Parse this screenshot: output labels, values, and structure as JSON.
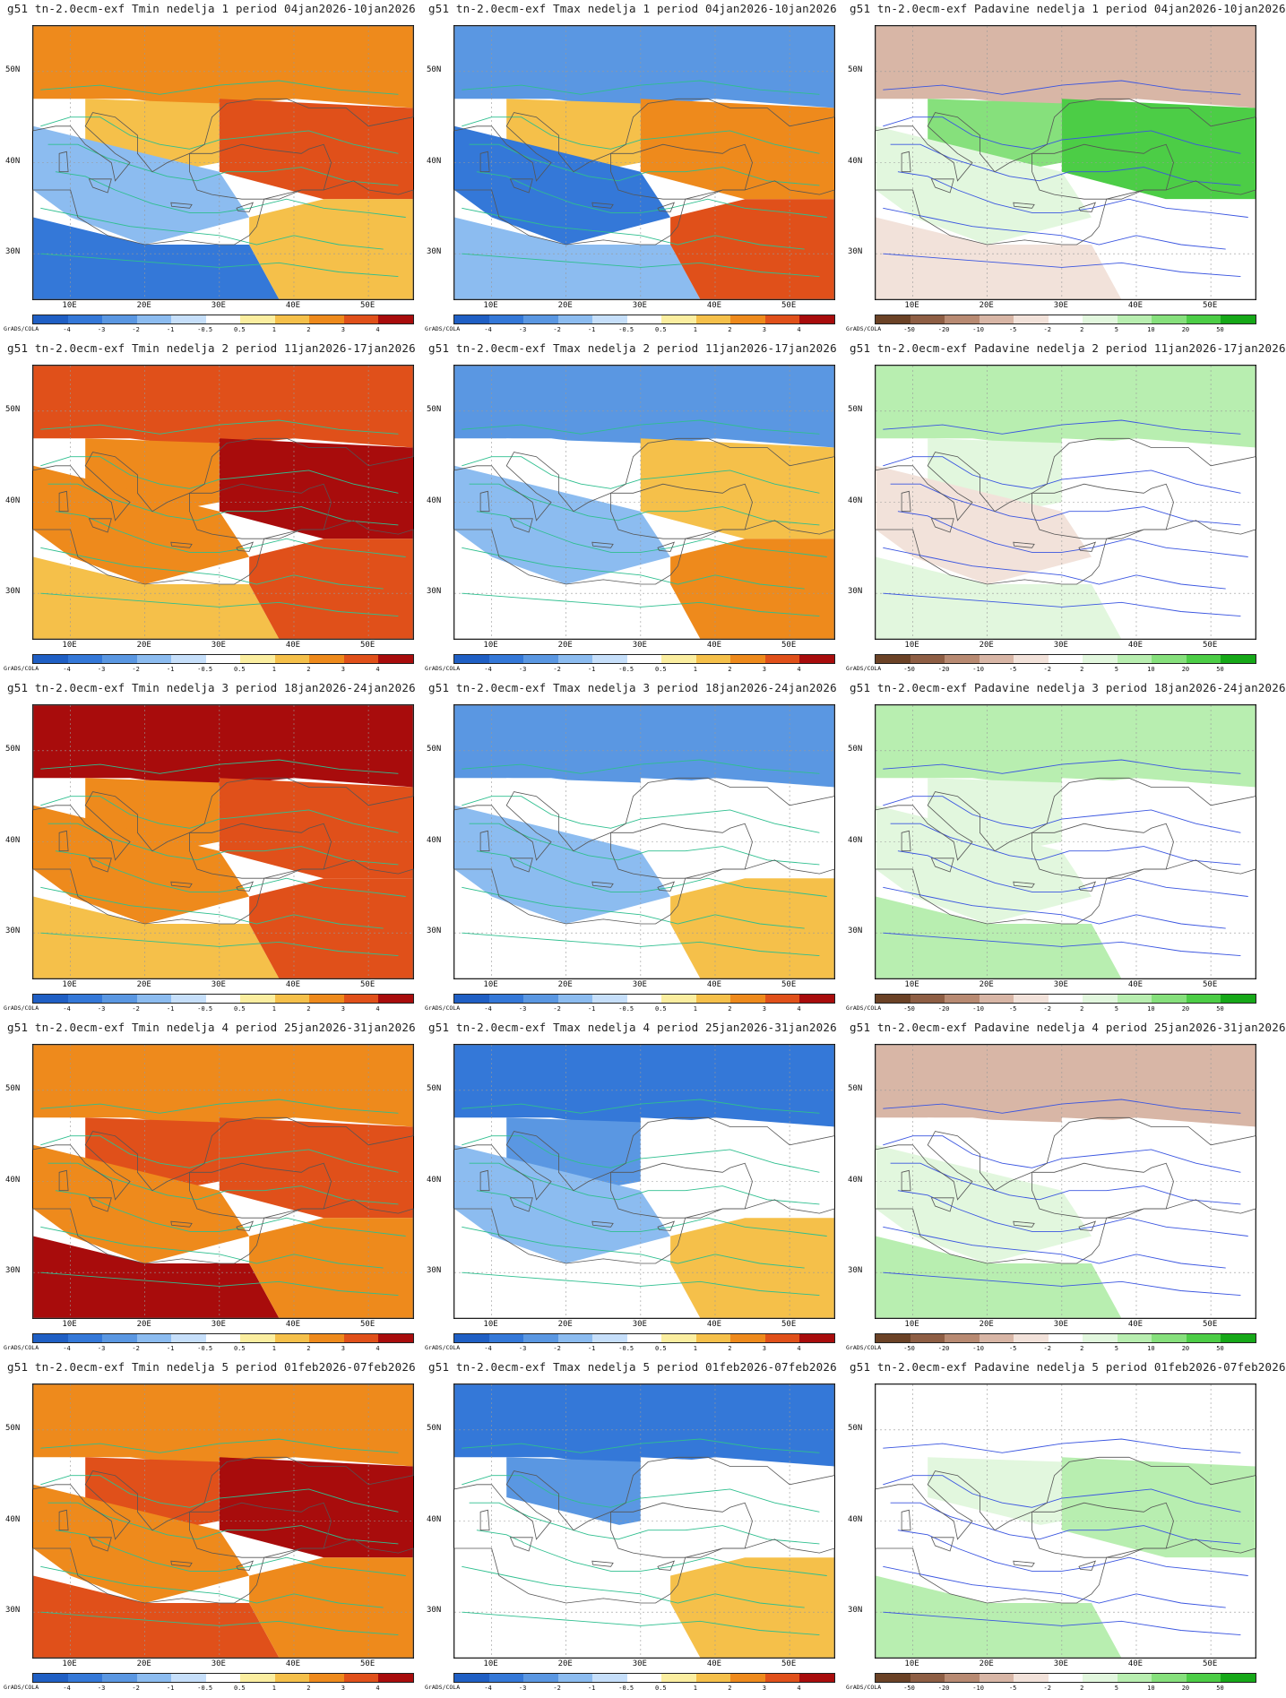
{
  "weeks": [
    {
      "row": 0,
      "tmin_title": "g51 tn-2.0ecm-exf Tmin nedelja 1 period 04jan2026-10jan2026",
      "tmax_title": "g51 tn-2.0ecm-exf Tmax nedelja 1 period 04jan2026-10jan2026",
      "prec_title": "g51 tn-2.0ecm-exf Padavine nedelja 1 period 04jan2026-10jan2026",
      "tmin_levels": [
        2,
        1,
        3,
        -1,
        -3,
        1
      ],
      "tmax_levels": [
        -2,
        1,
        2,
        -3,
        -1,
        3
      ],
      "prec_levels": [
        -5,
        10,
        20,
        2,
        -2,
        0
      ]
    },
    {
      "row": 1,
      "tmin_title": "g51 tn-2.0ecm-exf Tmin nedelja 2 period 11jan2026-17jan2026",
      "tmax_title": "g51 tn-2.0ecm-exf Tmax nedelja 2 period 11jan2026-17jan2026",
      "prec_title": "g51 tn-2.0ecm-exf Padavine nedelja 2 period 11jan2026-17jan2026",
      "tmin_levels": [
        3,
        2,
        4,
        2,
        1,
        3
      ],
      "tmax_levels": [
        -2,
        0,
        1,
        -1,
        0,
        2
      ],
      "prec_levels": [
        5,
        2,
        0,
        -2,
        2,
        0
      ]
    },
    {
      "row": 2,
      "tmin_title": "g51 tn-2.0ecm-exf Tmin nedelja 3 period 18jan2026-24jan2026",
      "tmax_title": "g51 tn-2.0ecm-exf Tmax nedelja 3 period 18jan2026-24jan2026",
      "prec_title": "g51 tn-2.0ecm-exf Padavine nedelja 3 period 18jan2026-24jan2026",
      "tmin_levels": [
        4,
        2,
        3,
        2,
        1,
        3
      ],
      "tmax_levels": [
        -2,
        0,
        0,
        -1,
        0,
        1
      ],
      "prec_levels": [
        5,
        2,
        0,
        2,
        5,
        0
      ]
    },
    {
      "row": 3,
      "tmin_title": "g51 tn-2.0ecm-exf Tmin nedelja 4 period 25jan2026-31jan2026",
      "tmax_title": "g51 tn-2.0ecm-exf Tmax nedelja 4 period 25jan2026-31jan2026",
      "prec_title": "g51 tn-2.0ecm-exf Padavine nedelja 4 period 25jan2026-31jan2026",
      "tmin_levels": [
        2,
        3,
        3,
        2,
        4,
        2
      ],
      "tmax_levels": [
        -3,
        -2,
        0,
        -1,
        0,
        1
      ],
      "prec_levels": [
        -5,
        0,
        0,
        2,
        5,
        0
      ]
    },
    {
      "row": 4,
      "tmin_title": "g51 tn-2.0ecm-exf Tmin nedelja 5 period 01feb2026-07feb2026",
      "tmax_title": "g51 tn-2.0ecm-exf Tmax nedelja 5 period 01feb2026-07feb2026",
      "prec_title": "g51 tn-2.0ecm-exf Padavine nedelja 5 period 01feb2026-07feb2026",
      "tmin_levels": [
        2,
        3,
        4,
        2,
        3,
        2
      ],
      "tmax_levels": [
        -3,
        -2,
        0,
        0,
        0,
        1
      ],
      "prec_levels": [
        0,
        2,
        5,
        0,
        5,
        0
      ]
    }
  ],
  "axes": {
    "lat_labels": [
      "50N",
      "40N",
      "30N"
    ],
    "lon_labels": [
      "10E",
      "20E",
      "30E",
      "40E",
      "50E"
    ]
  },
  "temp_colorbar": {
    "ticks": [
      "-4",
      "-3",
      "-2",
      "-1",
      "-0.5",
      "0.5",
      "1",
      "2",
      "3",
      "4"
    ],
    "colors": [
      "#1f5fc4",
      "#3478d8",
      "#5a97e2",
      "#8cbcf0",
      "#c6dffa",
      "#ffffff",
      "#fbeea0",
      "#f5c04a",
      "#ee8a1c",
      "#e0501a",
      "#a80c0c"
    ]
  },
  "prec_colorbar": {
    "ticks": [
      "-50",
      "-20",
      "-10",
      "-5",
      "-2",
      "2",
      "5",
      "10",
      "20",
      "50"
    ],
    "colors": [
      "#6b4226",
      "#8e5e44",
      "#b88a72",
      "#d8b6a6",
      "#f2e2da",
      "#ffffff",
      "#e2f7de",
      "#b8eeb0",
      "#86e07c",
      "#4ccd46",
      "#16a818"
    ]
  },
  "credit": "GrADS/COLA"
}
